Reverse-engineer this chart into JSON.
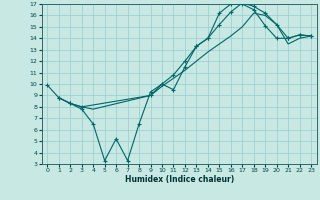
{
  "xlabel": "Humidex (Indice chaleur)",
  "xlim": [
    -0.5,
    23.5
  ],
  "ylim": [
    3,
    17
  ],
  "xticks": [
    0,
    1,
    2,
    3,
    4,
    5,
    6,
    7,
    8,
    9,
    10,
    11,
    12,
    13,
    14,
    15,
    16,
    17,
    18,
    19,
    20,
    21,
    22,
    23
  ],
  "yticks": [
    3,
    4,
    5,
    6,
    7,
    8,
    9,
    10,
    11,
    12,
    13,
    14,
    15,
    16,
    17
  ],
  "bg_color": "#c8e8e4",
  "grid_color": "#99cccc",
  "line_color": "#006666",
  "lines": [
    {
      "x": [
        0,
        1,
        2,
        3,
        4,
        5,
        6,
        7,
        8,
        9,
        10,
        11,
        12,
        13,
        14,
        15,
        16,
        17,
        18,
        19,
        20,
        21,
        22,
        23
      ],
      "y": [
        9.9,
        8.8,
        8.3,
        7.8,
        6.5,
        3.3,
        5.2,
        3.3,
        6.5,
        9.3,
        10.0,
        9.5,
        11.5,
        13.3,
        14.0,
        16.2,
        17.0,
        17.0,
        16.5,
        15.1,
        14.0,
        14.0,
        14.3,
        14.2
      ],
      "marker": "+"
    },
    {
      "x": [
        1,
        2,
        3,
        9,
        10,
        11,
        12,
        13,
        14,
        15,
        16,
        17,
        18,
        19,
        20,
        21,
        22,
        23
      ],
      "y": [
        8.8,
        8.3,
        8.0,
        9.0,
        10.0,
        10.8,
        12.0,
        13.3,
        14.0,
        15.2,
        16.3,
        17.1,
        16.8,
        16.2,
        15.2,
        14.0,
        14.3,
        14.2
      ],
      "marker": "+"
    },
    {
      "x": [
        1,
        2,
        3,
        4,
        9,
        10,
        11,
        12,
        13,
        14,
        15,
        16,
        17,
        18,
        19,
        20,
        21,
        22,
        23
      ],
      "y": [
        8.8,
        8.3,
        8.0,
        7.8,
        9.0,
        9.8,
        10.5,
        11.2,
        12.0,
        12.8,
        13.5,
        14.2,
        15.0,
        16.2,
        16.0,
        15.2,
        13.5,
        14.0,
        14.2
      ],
      "marker": null
    }
  ]
}
